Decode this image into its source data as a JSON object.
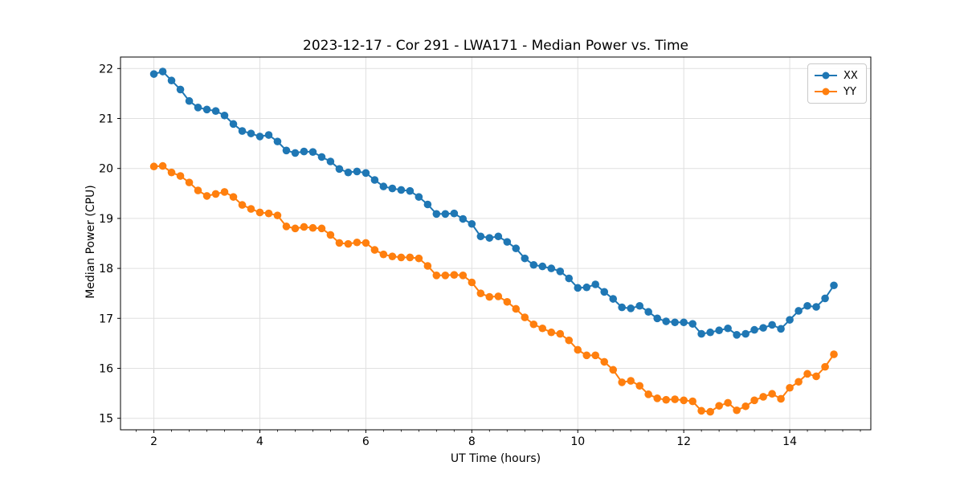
{
  "figure": {
    "background": "#ffffff"
  },
  "chart_data": {
    "type": "line",
    "title": "2023-12-17 - Cor 291 - LWA171 - Median Power vs. Time",
    "xlabel": "UT Time (hours)",
    "ylabel": "Median Power (CPU)",
    "xlim": [
      1.37,
      15.53
    ],
    "ylim": [
      14.77,
      22.23
    ],
    "x_ticks": [
      2,
      4,
      6,
      8,
      10,
      12,
      14
    ],
    "y_ticks": [
      15,
      16,
      17,
      18,
      19,
      20,
      21,
      22
    ],
    "x_minor_step": 0.33333,
    "grid": true,
    "grid_color": "#e0e0e0",
    "spine_color": "#000000",
    "legend_position": "upper right",
    "x": [
      2.0,
      2.167,
      2.333,
      2.5,
      2.667,
      2.833,
      3.0,
      3.167,
      3.333,
      3.5,
      3.667,
      3.833,
      4.0,
      4.167,
      4.333,
      4.5,
      4.667,
      4.833,
      5.0,
      5.167,
      5.333,
      5.5,
      5.667,
      5.833,
      6.0,
      6.167,
      6.333,
      6.5,
      6.667,
      6.833,
      7.0,
      7.167,
      7.333,
      7.5,
      7.667,
      7.833,
      8.0,
      8.167,
      8.333,
      8.5,
      8.667,
      8.833,
      9.0,
      9.167,
      9.333,
      9.5,
      9.667,
      9.833,
      10.0,
      10.167,
      10.333,
      10.5,
      10.667,
      10.833,
      11.0,
      11.167,
      11.333,
      11.5,
      11.667,
      11.833,
      12.0,
      12.167,
      12.333,
      12.5,
      12.667,
      12.833,
      13.0,
      13.167,
      13.333,
      13.5,
      13.667,
      13.833,
      14.0,
      14.167,
      14.333,
      14.5,
      14.667,
      14.833
    ],
    "series": [
      {
        "name": "XX",
        "color": "#1f77b4",
        "values": [
          21.89,
          21.94,
          21.76,
          21.58,
          21.35,
          21.22,
          21.18,
          21.15,
          21.06,
          20.89,
          20.75,
          20.7,
          20.64,
          20.67,
          20.54,
          20.36,
          20.31,
          20.34,
          20.33,
          20.23,
          20.14,
          19.99,
          19.92,
          19.94,
          19.91,
          19.77,
          19.64,
          19.6,
          19.57,
          19.55,
          19.43,
          19.28,
          19.09,
          19.09,
          19.1,
          18.99,
          18.89,
          18.64,
          18.61,
          18.64,
          18.53,
          18.4,
          18.2,
          18.07,
          18.04,
          18.0,
          17.94,
          17.8,
          17.61,
          17.62,
          17.68,
          17.53,
          17.39,
          17.22,
          17.2,
          17.25,
          17.13,
          17.0,
          16.94,
          16.92,
          16.92,
          16.89,
          16.69,
          16.72,
          16.76,
          16.8,
          16.67,
          16.69,
          16.77,
          16.81,
          16.87,
          16.79,
          16.97,
          17.15,
          17.25,
          17.23,
          17.4,
          17.66
        ]
      },
      {
        "name": "YY",
        "color": "#ff7f0e",
        "values": [
          20.04,
          20.05,
          19.92,
          19.85,
          19.72,
          19.56,
          19.45,
          19.49,
          19.53,
          19.43,
          19.27,
          19.19,
          19.12,
          19.1,
          19.06,
          18.84,
          18.8,
          18.83,
          18.81,
          18.8,
          18.67,
          18.51,
          18.49,
          18.52,
          18.51,
          18.37,
          18.28,
          18.24,
          18.22,
          18.22,
          18.2,
          18.05,
          17.86,
          17.86,
          17.87,
          17.86,
          17.72,
          17.5,
          17.43,
          17.44,
          17.33,
          17.19,
          17.02,
          16.88,
          16.8,
          16.72,
          16.69,
          16.56,
          16.37,
          16.26,
          16.26,
          16.13,
          15.97,
          15.72,
          15.75,
          15.65,
          15.48,
          15.4,
          15.37,
          15.38,
          15.36,
          15.34,
          15.15,
          15.13,
          15.25,
          15.31,
          15.16,
          15.24,
          15.36,
          15.43,
          15.49,
          15.39,
          15.61,
          15.73,
          15.89,
          15.84,
          16.03,
          16.28
        ]
      }
    ]
  }
}
